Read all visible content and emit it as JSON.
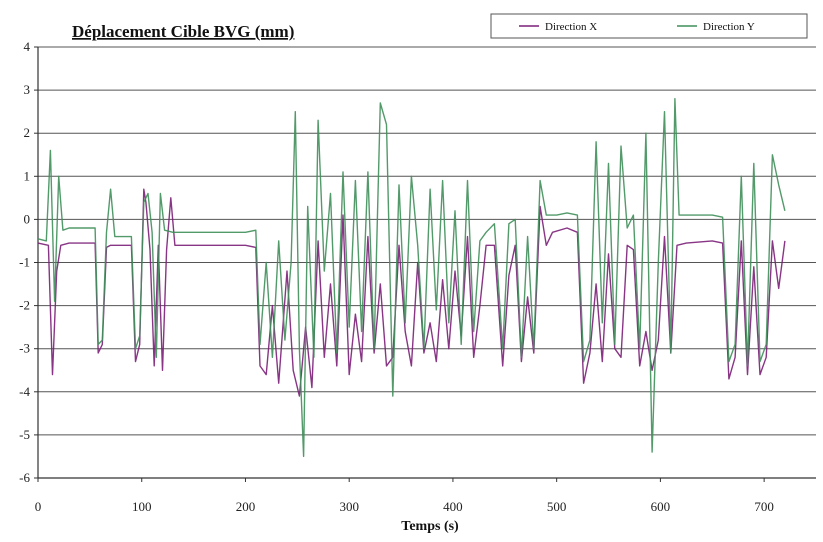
{
  "chart_data": {
    "type": "line",
    "title": "Déplacement Cible BVG (mm)",
    "xlabel": "Temps (s)",
    "ylabel": "",
    "xlim": [
      0,
      750
    ],
    "ylim": [
      -6,
      4
    ],
    "xticks": [
      "0",
      "100",
      "200",
      "300",
      "400",
      "500",
      "600",
      "700"
    ],
    "yticks": [
      "-6",
      "-5",
      "-4",
      "-3",
      "-2",
      "-1",
      "0",
      "1",
      "2",
      "3",
      "4"
    ],
    "grid": "horizontal",
    "legend_position": "top-right",
    "series": [
      {
        "name": "Direction X",
        "color": "#7b1f78",
        "points": [
          [
            0,
            -0.55
          ],
          [
            10,
            -0.6
          ],
          [
            14,
            -3.6
          ],
          [
            18,
            -1.2
          ],
          [
            22,
            -0.6
          ],
          [
            30,
            -0.55
          ],
          [
            55,
            -0.55
          ],
          [
            58,
            -3.1
          ],
          [
            62,
            -2.9
          ],
          [
            66,
            -0.65
          ],
          [
            70,
            -0.6
          ],
          [
            90,
            -0.6
          ],
          [
            94,
            -3.3
          ],
          [
            98,
            -2.9
          ],
          [
            102,
            0.7
          ],
          [
            104,
            0.4
          ],
          [
            108,
            -0.7
          ],
          [
            112,
            -3.4
          ],
          [
            116,
            -0.6
          ],
          [
            120,
            -3.5
          ],
          [
            124,
            -0.7
          ],
          [
            128,
            0.5
          ],
          [
            132,
            -0.6
          ],
          [
            150,
            -0.6
          ],
          [
            200,
            -0.6
          ],
          [
            210,
            -0.65
          ],
          [
            214,
            -3.4
          ],
          [
            220,
            -3.6
          ],
          [
            226,
            -2.0
          ],
          [
            232,
            -3.8
          ],
          [
            240,
            -1.2
          ],
          [
            246,
            -3.5
          ],
          [
            252,
            -4.1
          ],
          [
            258,
            -2.5
          ],
          [
            264,
            -3.9
          ],
          [
            270,
            -0.5
          ],
          [
            276,
            -3.2
          ],
          [
            282,
            -1.5
          ],
          [
            288,
            -3.4
          ],
          [
            294,
            0.1
          ],
          [
            300,
            -3.6
          ],
          [
            306,
            -2.2
          ],
          [
            312,
            -3.3
          ],
          [
            318,
            -0.4
          ],
          [
            324,
            -3.1
          ],
          [
            330,
            -1.5
          ],
          [
            336,
            -3.4
          ],
          [
            342,
            -3.2
          ],
          [
            348,
            -0.6
          ],
          [
            354,
            -2.6
          ],
          [
            360,
            -3.4
          ],
          [
            366,
            -1.0
          ],
          [
            372,
            -3.1
          ],
          [
            378,
            -2.4
          ],
          [
            384,
            -3.3
          ],
          [
            390,
            -1.4
          ],
          [
            396,
            -3.0
          ],
          [
            402,
            -1.2
          ],
          [
            408,
            -2.7
          ],
          [
            414,
            -0.4
          ],
          [
            420,
            -3.2
          ],
          [
            426,
            -2.0
          ],
          [
            432,
            -0.6
          ],
          [
            440,
            -0.6
          ],
          [
            448,
            -3.4
          ],
          [
            454,
            -1.3
          ],
          [
            460,
            -0.6
          ],
          [
            466,
            -3.3
          ],
          [
            472,
            -1.8
          ],
          [
            478,
            -3.1
          ],
          [
            484,
            0.3
          ],
          [
            490,
            -0.6
          ],
          [
            496,
            -0.3
          ],
          [
            510,
            -0.2
          ],
          [
            520,
            -0.3
          ],
          [
            526,
            -3.8
          ],
          [
            532,
            -3.1
          ],
          [
            538,
            -1.5
          ],
          [
            544,
            -3.3
          ],
          [
            550,
            -0.8
          ],
          [
            556,
            -3.0
          ],
          [
            562,
            -3.2
          ],
          [
            568,
            -0.6
          ],
          [
            574,
            -0.7
          ],
          [
            580,
            -3.4
          ],
          [
            586,
            -2.6
          ],
          [
            592,
            -3.5
          ],
          [
            598,
            -2.8
          ],
          [
            604,
            -0.4
          ],
          [
            610,
            -3.1
          ],
          [
            616,
            -0.6
          ],
          [
            625,
            -0.55
          ],
          [
            650,
            -0.5
          ],
          [
            660,
            -0.55
          ],
          [
            666,
            -3.7
          ],
          [
            672,
            -3.2
          ],
          [
            678,
            -0.5
          ],
          [
            684,
            -3.6
          ],
          [
            690,
            -1.1
          ],
          [
            696,
            -3.6
          ],
          [
            702,
            -3.2
          ],
          [
            708,
            -0.5
          ],
          [
            714,
            -1.6
          ],
          [
            720,
            -0.5
          ]
        ]
      },
      {
        "name": "Direction Y",
        "color": "#3f8f5a",
        "points": [
          [
            0,
            -0.45
          ],
          [
            8,
            -0.5
          ],
          [
            12,
            1.6
          ],
          [
            16,
            -1.9
          ],
          [
            20,
            1.0
          ],
          [
            24,
            -0.25
          ],
          [
            30,
            -0.2
          ],
          [
            55,
            -0.2
          ],
          [
            58,
            -2.9
          ],
          [
            62,
            -2.8
          ],
          [
            66,
            -0.3
          ],
          [
            70,
            0.7
          ],
          [
            74,
            -0.4
          ],
          [
            90,
            -0.4
          ],
          [
            94,
            -3.0
          ],
          [
            98,
            -2.7
          ],
          [
            102,
            0.4
          ],
          [
            106,
            0.6
          ],
          [
            110,
            -0.3
          ],
          [
            114,
            -3.2
          ],
          [
            118,
            0.6
          ],
          [
            122,
            -0.25
          ],
          [
            130,
            -0.3
          ],
          [
            150,
            -0.3
          ],
          [
            200,
            -0.3
          ],
          [
            210,
            -0.25
          ],
          [
            214,
            -2.9
          ],
          [
            220,
            -1.0
          ],
          [
            226,
            -3.2
          ],
          [
            232,
            -0.5
          ],
          [
            238,
            -2.8
          ],
          [
            244,
            -1.0
          ],
          [
            248,
            2.5
          ],
          [
            252,
            -3.0
          ],
          [
            256,
            -5.5
          ],
          [
            260,
            0.3
          ],
          [
            266,
            -3.2
          ],
          [
            270,
            2.3
          ],
          [
            276,
            -1.2
          ],
          [
            282,
            0.6
          ],
          [
            288,
            -3.1
          ],
          [
            294,
            1.1
          ],
          [
            300,
            -2.5
          ],
          [
            306,
            0.9
          ],
          [
            312,
            -2.6
          ],
          [
            318,
            1.1
          ],
          [
            324,
            -3.0
          ],
          [
            330,
            2.7
          ],
          [
            336,
            2.2
          ],
          [
            342,
            -4.1
          ],
          [
            348,
            0.8
          ],
          [
            354,
            -2.4
          ],
          [
            360,
            1.0
          ],
          [
            366,
            -0.6
          ],
          [
            372,
            -3.0
          ],
          [
            378,
            0.7
          ],
          [
            384,
            -2.1
          ],
          [
            390,
            0.9
          ],
          [
            396,
            -2.4
          ],
          [
            402,
            0.2
          ],
          [
            408,
            -2.9
          ],
          [
            414,
            0.9
          ],
          [
            420,
            -2.6
          ],
          [
            426,
            -0.5
          ],
          [
            432,
            -0.3
          ],
          [
            440,
            -0.1
          ],
          [
            448,
            -3.0
          ],
          [
            454,
            -0.1
          ],
          [
            460,
            0.0
          ],
          [
            466,
            -3.2
          ],
          [
            472,
            -0.4
          ],
          [
            478,
            -3.0
          ],
          [
            484,
            0.9
          ],
          [
            490,
            0.1
          ],
          [
            500,
            0.1
          ],
          [
            510,
            0.15
          ],
          [
            520,
            0.1
          ],
          [
            526,
            -3.3
          ],
          [
            532,
            -2.8
          ],
          [
            538,
            1.8
          ],
          [
            544,
            -2.4
          ],
          [
            550,
            1.3
          ],
          [
            556,
            -2.9
          ],
          [
            562,
            1.7
          ],
          [
            568,
            -0.2
          ],
          [
            574,
            0.1
          ],
          [
            580,
            -3.0
          ],
          [
            586,
            2.0
          ],
          [
            592,
            -5.4
          ],
          [
            598,
            -1.0
          ],
          [
            604,
            2.5
          ],
          [
            610,
            -3.1
          ],
          [
            614,
            2.8
          ],
          [
            618,
            0.1
          ],
          [
            625,
            0.1
          ],
          [
            650,
            0.1
          ],
          [
            660,
            0.05
          ],
          [
            666,
            -3.3
          ],
          [
            672,
            -2.9
          ],
          [
            678,
            1.0
          ],
          [
            684,
            -3.4
          ],
          [
            690,
            1.3
          ],
          [
            696,
            -3.3
          ],
          [
            702,
            -2.9
          ],
          [
            708,
            1.5
          ],
          [
            714,
            0.8
          ],
          [
            720,
            0.2
          ]
        ]
      }
    ]
  }
}
